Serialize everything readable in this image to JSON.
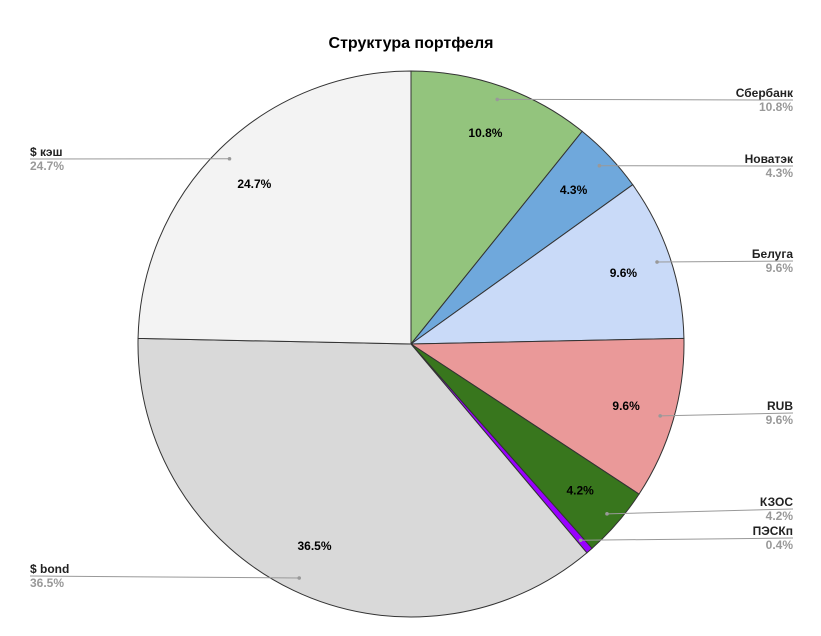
{
  "chart_data": {
    "type": "pie",
    "title": "Структура портфеля",
    "categories": [
      "Сбербанк",
      "Новатэк",
      "Белуга",
      "RUB",
      "КЗОС",
      "ПЭСКп",
      "$ bond",
      "$ кэш"
    ],
    "values": [
      10.8,
      4.3,
      9.6,
      9.6,
      4.2,
      0.4,
      36.5,
      24.7
    ],
    "value_labels": [
      "10.8%",
      "4.3%",
      "9.6%",
      "9.6%",
      "4.2%",
      "0.4%",
      "36.5%",
      "24.7%"
    ],
    "colors": [
      "#93c47d",
      "#6fa8dc",
      "#c9daf8",
      "#ea9999",
      "#38761d",
      "#9900ff",
      "#d9d9d9",
      "#f3f3f3"
    ]
  }
}
